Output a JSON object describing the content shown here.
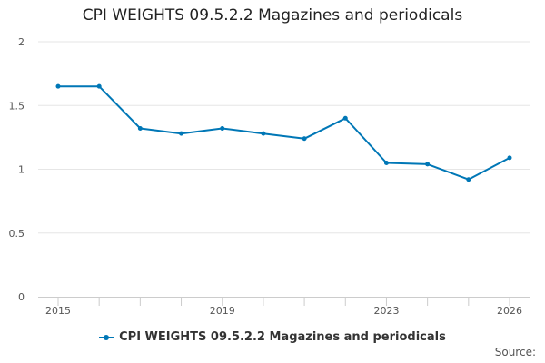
{
  "colors": {
    "series": "#0077b6",
    "grid": "#e6e6e6",
    "axis": "#cccccc"
  },
  "source_label": "Source:",
  "chart_data": {
    "type": "line",
    "title": "CPI WEIGHTS 09.5.2.2 Magazines and periodicals",
    "xlabel": "",
    "ylabel": "",
    "ylim": [
      0,
      2
    ],
    "yticks": [
      "0",
      "0.5",
      "1",
      "1.5",
      "2"
    ],
    "xlim": [
      2015,
      2026
    ],
    "xticks": [
      "2015",
      "2019",
      "2023",
      "2026"
    ],
    "grid": true,
    "legend_position": "bottom",
    "series": [
      {
        "name": "CPI WEIGHTS 09.5.2.2 Magazines and periodicals",
        "x": [
          2015,
          2016,
          2017,
          2018,
          2019,
          2020,
          2021,
          2022,
          2023,
          2024,
          2025,
          2026
        ],
        "values": [
          1.65,
          1.65,
          1.32,
          1.28,
          1.32,
          1.28,
          1.24,
          1.4,
          1.05,
          1.04,
          0.92,
          1.09
        ]
      }
    ]
  }
}
